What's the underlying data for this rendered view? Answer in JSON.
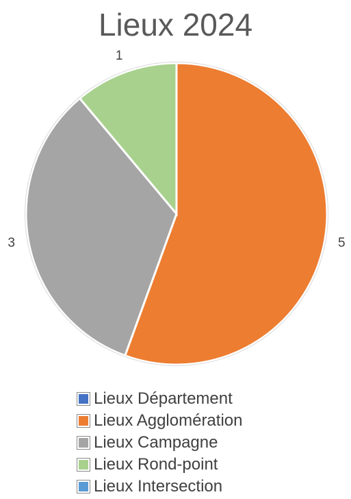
{
  "chart_data": {
    "type": "pie",
    "title": "Lieux 2024",
    "categories": [
      "Lieux Département",
      "Lieux Agglomération",
      "Lieux Campagne",
      "Lieux Rond-point",
      "Lieux Intersection"
    ],
    "values": [
      0,
      5,
      3,
      1,
      0
    ],
    "data_labels": [
      "",
      "5",
      "3",
      "1",
      ""
    ],
    "colors": [
      "#4472C4",
      "#ED7D31",
      "#A5A5A5",
      "#A9D18E",
      "#5B9BD5"
    ],
    "legend_position": "bottom",
    "start": "top, clockwise"
  }
}
